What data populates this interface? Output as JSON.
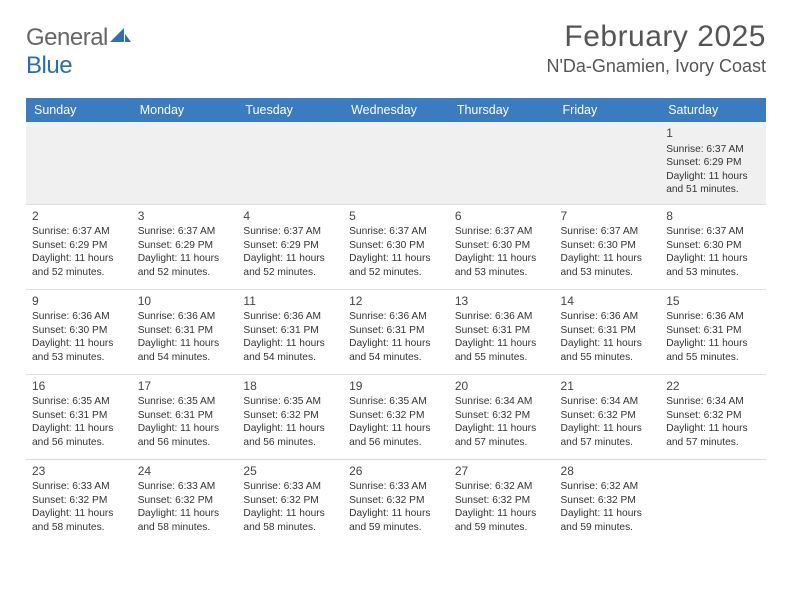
{
  "logo": {
    "word1": "General",
    "word2": "Blue",
    "shape_color": "#2f6fb3"
  },
  "title": "February 2025",
  "location": "N'Da-Gnamien, Ivory Coast",
  "colors": {
    "header_bg": "#3b7bbf",
    "header_text": "#ffffff",
    "page_bg": "#ffffff",
    "cell_text": "#333333",
    "first_week_bg": "#f0f0f0",
    "rule": "#9a9a9a55"
  },
  "typography": {
    "title_fontsize": 30,
    "location_fontsize": 18,
    "dayheader_fontsize": 12.5,
    "cell_fontsize": 10.2,
    "daynum_fontsize": 12
  },
  "day_headers": [
    "Sunday",
    "Monday",
    "Tuesday",
    "Wednesday",
    "Thursday",
    "Friday",
    "Saturday"
  ],
  "weeks": [
    [
      {},
      {},
      {},
      {},
      {},
      {},
      {
        "n": "1",
        "sr": "Sunrise: 6:37 AM",
        "ss": "Sunset: 6:29 PM",
        "dl": "Daylight: 11 hours and 51 minutes."
      }
    ],
    [
      {
        "n": "2",
        "sr": "Sunrise: 6:37 AM",
        "ss": "Sunset: 6:29 PM",
        "dl": "Daylight: 11 hours and 52 minutes."
      },
      {
        "n": "3",
        "sr": "Sunrise: 6:37 AM",
        "ss": "Sunset: 6:29 PM",
        "dl": "Daylight: 11 hours and 52 minutes."
      },
      {
        "n": "4",
        "sr": "Sunrise: 6:37 AM",
        "ss": "Sunset: 6:29 PM",
        "dl": "Daylight: 11 hours and 52 minutes."
      },
      {
        "n": "5",
        "sr": "Sunrise: 6:37 AM",
        "ss": "Sunset: 6:30 PM",
        "dl": "Daylight: 11 hours and 52 minutes."
      },
      {
        "n": "6",
        "sr": "Sunrise: 6:37 AM",
        "ss": "Sunset: 6:30 PM",
        "dl": "Daylight: 11 hours and 53 minutes."
      },
      {
        "n": "7",
        "sr": "Sunrise: 6:37 AM",
        "ss": "Sunset: 6:30 PM",
        "dl": "Daylight: 11 hours and 53 minutes."
      },
      {
        "n": "8",
        "sr": "Sunrise: 6:37 AM",
        "ss": "Sunset: 6:30 PM",
        "dl": "Daylight: 11 hours and 53 minutes."
      }
    ],
    [
      {
        "n": "9",
        "sr": "Sunrise: 6:36 AM",
        "ss": "Sunset: 6:30 PM",
        "dl": "Daylight: 11 hours and 53 minutes."
      },
      {
        "n": "10",
        "sr": "Sunrise: 6:36 AM",
        "ss": "Sunset: 6:31 PM",
        "dl": "Daylight: 11 hours and 54 minutes."
      },
      {
        "n": "11",
        "sr": "Sunrise: 6:36 AM",
        "ss": "Sunset: 6:31 PM",
        "dl": "Daylight: 11 hours and 54 minutes."
      },
      {
        "n": "12",
        "sr": "Sunrise: 6:36 AM",
        "ss": "Sunset: 6:31 PM",
        "dl": "Daylight: 11 hours and 54 minutes."
      },
      {
        "n": "13",
        "sr": "Sunrise: 6:36 AM",
        "ss": "Sunset: 6:31 PM",
        "dl": "Daylight: 11 hours and 55 minutes."
      },
      {
        "n": "14",
        "sr": "Sunrise: 6:36 AM",
        "ss": "Sunset: 6:31 PM",
        "dl": "Daylight: 11 hours and 55 minutes."
      },
      {
        "n": "15",
        "sr": "Sunrise: 6:36 AM",
        "ss": "Sunset: 6:31 PM",
        "dl": "Daylight: 11 hours and 55 minutes."
      }
    ],
    [
      {
        "n": "16",
        "sr": "Sunrise: 6:35 AM",
        "ss": "Sunset: 6:31 PM",
        "dl": "Daylight: 11 hours and 56 minutes."
      },
      {
        "n": "17",
        "sr": "Sunrise: 6:35 AM",
        "ss": "Sunset: 6:31 PM",
        "dl": "Daylight: 11 hours and 56 minutes."
      },
      {
        "n": "18",
        "sr": "Sunrise: 6:35 AM",
        "ss": "Sunset: 6:32 PM",
        "dl": "Daylight: 11 hours and 56 minutes."
      },
      {
        "n": "19",
        "sr": "Sunrise: 6:35 AM",
        "ss": "Sunset: 6:32 PM",
        "dl": "Daylight: 11 hours and 56 minutes."
      },
      {
        "n": "20",
        "sr": "Sunrise: 6:34 AM",
        "ss": "Sunset: 6:32 PM",
        "dl": "Daylight: 11 hours and 57 minutes."
      },
      {
        "n": "21",
        "sr": "Sunrise: 6:34 AM",
        "ss": "Sunset: 6:32 PM",
        "dl": "Daylight: 11 hours and 57 minutes."
      },
      {
        "n": "22",
        "sr": "Sunrise: 6:34 AM",
        "ss": "Sunset: 6:32 PM",
        "dl": "Daylight: 11 hours and 57 minutes."
      }
    ],
    [
      {
        "n": "23",
        "sr": "Sunrise: 6:33 AM",
        "ss": "Sunset: 6:32 PM",
        "dl": "Daylight: 11 hours and 58 minutes."
      },
      {
        "n": "24",
        "sr": "Sunrise: 6:33 AM",
        "ss": "Sunset: 6:32 PM",
        "dl": "Daylight: 11 hours and 58 minutes."
      },
      {
        "n": "25",
        "sr": "Sunrise: 6:33 AM",
        "ss": "Sunset: 6:32 PM",
        "dl": "Daylight: 11 hours and 58 minutes."
      },
      {
        "n": "26",
        "sr": "Sunrise: 6:33 AM",
        "ss": "Sunset: 6:32 PM",
        "dl": "Daylight: 11 hours and 59 minutes."
      },
      {
        "n": "27",
        "sr": "Sunrise: 6:32 AM",
        "ss": "Sunset: 6:32 PM",
        "dl": "Daylight: 11 hours and 59 minutes."
      },
      {
        "n": "28",
        "sr": "Sunrise: 6:32 AM",
        "ss": "Sunset: 6:32 PM",
        "dl": "Daylight: 11 hours and 59 minutes."
      },
      {}
    ]
  ]
}
